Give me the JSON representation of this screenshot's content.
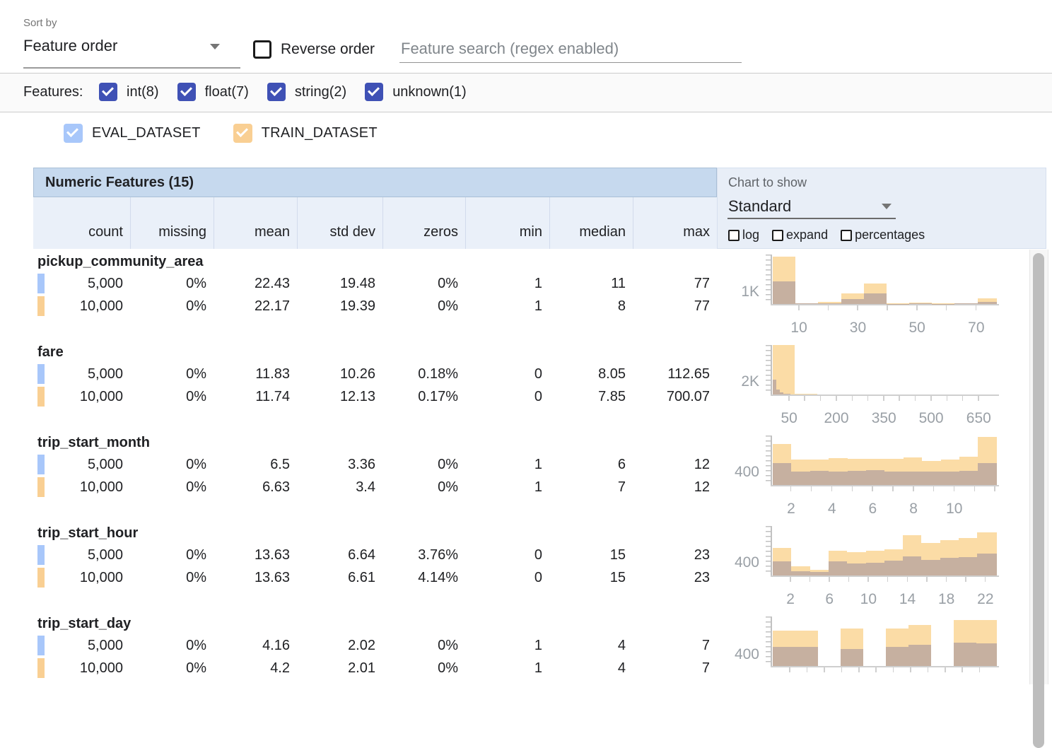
{
  "colors": {
    "eval": "#a8c7fa",
    "train": "#f9cf93",
    "train_bar": "#fbdca6",
    "overlap_bar": "#c6b0a0",
    "indigo": "#3f51b5",
    "header_band": "#c6d9ee",
    "header_row": "#eaf0f9",
    "panel": "#e8eef7"
  },
  "toolbar": {
    "sort_by_label": "Sort by",
    "sort_value": "Feature order",
    "reverse_label": "Reverse order",
    "search_placeholder": "Feature search (regex enabled)"
  },
  "filters": {
    "label": "Features:",
    "types": [
      {
        "label": "int(8)",
        "checked": true
      },
      {
        "label": "float(7)",
        "checked": true
      },
      {
        "label": "string(2)",
        "checked": true
      },
      {
        "label": "unknown(1)",
        "checked": true
      }
    ]
  },
  "datasets": [
    {
      "name": "EVAL_DATASET",
      "checked": true
    },
    {
      "name": "TRAIN_DATASET",
      "checked": true
    }
  ],
  "table": {
    "title": "Numeric Features (15)",
    "columns": [
      "count",
      "missing",
      "mean",
      "std dev",
      "zeros",
      "min",
      "median",
      "max"
    ]
  },
  "chart_controls": {
    "label": "Chart to show",
    "value": "Standard",
    "options": [
      {
        "label": "log",
        "checked": false
      },
      {
        "label": "expand",
        "checked": false
      },
      {
        "label": "percentages",
        "checked": false
      }
    ]
  },
  "features": [
    {
      "name": "pickup_community_area",
      "rows": [
        {
          "dataset": "EVAL_DATASET",
          "values": [
            "5,000",
            "0%",
            "22.43",
            "19.48",
            "0%",
            "1",
            "11",
            "77"
          ]
        },
        {
          "dataset": "TRAIN_DATASET",
          "values": [
            "10,000",
            "0%",
            "22.17",
            "19.39",
            "0%",
            "1",
            "8",
            "77"
          ]
        }
      ]
    },
    {
      "name": "fare",
      "rows": [
        {
          "dataset": "EVAL_DATASET",
          "values": [
            "5,000",
            "0%",
            "11.83",
            "10.26",
            "0.18%",
            "0",
            "8.05",
            "112.65"
          ]
        },
        {
          "dataset": "TRAIN_DATASET",
          "values": [
            "10,000",
            "0%",
            "11.74",
            "12.13",
            "0.17%",
            "0",
            "7.85",
            "700.07"
          ]
        }
      ]
    },
    {
      "name": "trip_start_month",
      "rows": [
        {
          "dataset": "EVAL_DATASET",
          "values": [
            "5,000",
            "0%",
            "6.5",
            "3.36",
            "0%",
            "1",
            "6",
            "12"
          ]
        },
        {
          "dataset": "TRAIN_DATASET",
          "values": [
            "10,000",
            "0%",
            "6.63",
            "3.4",
            "0%",
            "1",
            "7",
            "12"
          ]
        }
      ]
    },
    {
      "name": "trip_start_hour",
      "rows": [
        {
          "dataset": "EVAL_DATASET",
          "values": [
            "5,000",
            "0%",
            "13.63",
            "6.64",
            "3.76%",
            "0",
            "15",
            "23"
          ]
        },
        {
          "dataset": "TRAIN_DATASET",
          "values": [
            "10,000",
            "0%",
            "13.63",
            "6.61",
            "4.14%",
            "0",
            "15",
            "23"
          ]
        }
      ]
    },
    {
      "name": "trip_start_day",
      "rows": [
        {
          "dataset": "EVAL_DATASET",
          "values": [
            "5,000",
            "0%",
            "4.16",
            "2.02",
            "0%",
            "1",
            "4",
            "7"
          ]
        },
        {
          "dataset": "TRAIN_DATASET",
          "values": [
            "10,000",
            "0%",
            "4.2",
            "2.01",
            "0%",
            "1",
            "4",
            "7"
          ]
        }
      ]
    }
  ],
  "chart_data": [
    {
      "feature": "pickup_community_area",
      "type": "histogram",
      "series": [
        "TRAIN_DATASET",
        "EVAL_DATASET"
      ],
      "ylabel": {
        "text": "1K",
        "value": 1000
      },
      "ymax": 3850,
      "ticks": [
        {
          "p": 11.7,
          "t": "10"
        },
        {
          "p": 24.9
        },
        {
          "p": 38.0,
          "t": "30"
        },
        {
          "p": 51.2
        },
        {
          "p": 64.4,
          "t": "50"
        },
        {
          "p": 77.6
        },
        {
          "p": 90.8,
          "t": "70"
        }
      ],
      "bars": [
        {
          "l": 0,
          "w": 10.15,
          "train": 3700,
          "eval": 1770
        },
        {
          "l": 10.15,
          "w": 10.15,
          "train": 60,
          "eval": 30
        },
        {
          "l": 20.3,
          "w": 10.15,
          "train": 160,
          "eval": 60
        },
        {
          "l": 30.45,
          "w": 10.15,
          "train": 810,
          "eval": 390
        },
        {
          "l": 40.6,
          "w": 10.15,
          "train": 1620,
          "eval": 810
        },
        {
          "l": 50.75,
          "w": 10.15,
          "train": 40,
          "eval": 20
        },
        {
          "l": 60.9,
          "w": 10.15,
          "train": 100,
          "eval": 40
        },
        {
          "l": 71.05,
          "w": 10.15,
          "train": 40,
          "eval": 20
        },
        {
          "l": 81.2,
          "w": 10.15,
          "train": 60,
          "eval": 30
        },
        {
          "l": 91.35,
          "w": 8.65,
          "train": 420,
          "eval": 170
        }
      ]
    },
    {
      "feature": "fare",
      "type": "histogram",
      "series": [
        "TRAIN_DATASET",
        "EVAL_DATASET"
      ],
      "ylabel": {
        "text": "2K",
        "value": 2000
      },
      "ymax": 7200,
      "ticks": [
        {
          "p": 7.3,
          "t": "50"
        },
        {
          "p": 14.3
        },
        {
          "p": 21.4
        },
        {
          "p": 28.4,
          "t": "200"
        },
        {
          "p": 35.5
        },
        {
          "p": 42.5
        },
        {
          "p": 49.6,
          "t": "350"
        },
        {
          "p": 56.6
        },
        {
          "p": 63.7
        },
        {
          "p": 70.7,
          "t": "500"
        },
        {
          "p": 77.8
        },
        {
          "p": 84.8
        },
        {
          "p": 91.9,
          "t": "650"
        }
      ],
      "bars": [
        {
          "l": 0,
          "w": 9.9,
          "train": 7200,
          "eval": 0
        },
        {
          "l": 9.9,
          "w": 9.9,
          "train": 110,
          "eval": 0
        },
        {
          "l": 0,
          "w": 1.6,
          "train": 0,
          "eval": 2160
        },
        {
          "l": 1.6,
          "w": 1.6,
          "train": 0,
          "eval": 720
        },
        {
          "l": 3.2,
          "w": 1.6,
          "train": 0,
          "eval": 290
        },
        {
          "l": 4.8,
          "w": 1.6,
          "train": 0,
          "eval": 140
        },
        {
          "l": 6.4,
          "w": 1.6,
          "train": 0,
          "eval": 70
        }
      ]
    },
    {
      "feature": "trip_start_month",
      "type": "histogram",
      "series": [
        "TRAIN_DATASET",
        "EVAL_DATASET"
      ],
      "ylabel": {
        "text": "400",
        "value": 400
      },
      "ymax": 1445,
      "ticks": [
        {
          "p": 8.2,
          "t": "2"
        },
        {
          "p": 17.3
        },
        {
          "p": 26.4,
          "t": "4"
        },
        {
          "p": 35.5
        },
        {
          "p": 44.6,
          "t": "6"
        },
        {
          "p": 53.7
        },
        {
          "p": 62.8,
          "t": "8"
        },
        {
          "p": 71.9
        },
        {
          "p": 81.0,
          "t": "10"
        },
        {
          "p": 90.1
        },
        {
          "p": 99.2
        }
      ],
      "bars": [
        {
          "l": 0,
          "w": 8.33,
          "train": 1200,
          "eval": 640
        },
        {
          "l": 8.33,
          "w": 8.33,
          "train": 740,
          "eval": 400
        },
        {
          "l": 16.66,
          "w": 8.33,
          "train": 740,
          "eval": 405
        },
        {
          "l": 24.99,
          "w": 8.33,
          "train": 780,
          "eval": 390
        },
        {
          "l": 33.32,
          "w": 8.33,
          "train": 760,
          "eval": 420
        },
        {
          "l": 41.65,
          "w": 8.33,
          "train": 760,
          "eval": 430
        },
        {
          "l": 49.98,
          "w": 8.33,
          "train": 760,
          "eval": 390
        },
        {
          "l": 58.31,
          "w": 8.33,
          "train": 800,
          "eval": 400
        },
        {
          "l": 66.64,
          "w": 8.33,
          "train": 700,
          "eval": 400
        },
        {
          "l": 74.97,
          "w": 8.33,
          "train": 740,
          "eval": 400
        },
        {
          "l": 83.3,
          "w": 8.33,
          "train": 820,
          "eval": 420
        },
        {
          "l": 91.63,
          "w": 8.37,
          "train": 1400,
          "eval": 640
        }
      ]
    },
    {
      "feature": "trip_start_hour",
      "type": "histogram",
      "series": [
        "TRAIN_DATASET",
        "EVAL_DATASET"
      ],
      "ylabel": {
        "text": "400",
        "value": 400
      },
      "ymax": 1500,
      "ticks": [
        {
          "p": 7.9,
          "t": "2"
        },
        {
          "p": 16.6
        },
        {
          "p": 25.3,
          "t": "6"
        },
        {
          "p": 34.0
        },
        {
          "p": 42.7,
          "t": "10"
        },
        {
          "p": 51.4
        },
        {
          "p": 60.1,
          "t": "14"
        },
        {
          "p": 68.8
        },
        {
          "p": 77.5,
          "t": "18"
        },
        {
          "p": 86.2
        },
        {
          "p": 94.9,
          "t": "22"
        }
      ],
      "bars": [
        {
          "l": 0,
          "w": 8.3,
          "train": 840,
          "eval": 420
        },
        {
          "l": 8.3,
          "w": 8.3,
          "train": 280,
          "eval": 120
        },
        {
          "l": 16.6,
          "w": 8.3,
          "train": 180,
          "eval": 100
        },
        {
          "l": 24.9,
          "w": 8.3,
          "train": 760,
          "eval": 420
        },
        {
          "l": 33.2,
          "w": 8.3,
          "train": 700,
          "eval": 360
        },
        {
          "l": 41.5,
          "w": 8.3,
          "train": 740,
          "eval": 380
        },
        {
          "l": 49.8,
          "w": 8.3,
          "train": 800,
          "eval": 440
        },
        {
          "l": 58.1,
          "w": 8.3,
          "train": 1220,
          "eval": 580
        },
        {
          "l": 66.4,
          "w": 8.3,
          "train": 980,
          "eval": 480
        },
        {
          "l": 74.7,
          "w": 8.3,
          "train": 1080,
          "eval": 540
        },
        {
          "l": 83.0,
          "w": 8.3,
          "train": 1140,
          "eval": 560
        },
        {
          "l": 91.3,
          "w": 8.7,
          "train": 1300,
          "eval": 660
        }
      ]
    },
    {
      "feature": "trip_start_day",
      "type": "histogram",
      "series": [
        "TRAIN_DATASET",
        "EVAL_DATASET"
      ],
      "ylabel": {
        "text": "400",
        "value": 400
      },
      "ymax": 1695,
      "ticks": [
        {
          "p": 7.7
        },
        {
          "p": 15.4
        },
        {
          "p": 23.1
        },
        {
          "p": 30.8
        },
        {
          "p": 38.5
        },
        {
          "p": 46.2
        },
        {
          "p": 53.9
        },
        {
          "p": 61.6
        },
        {
          "p": 69.3
        },
        {
          "p": 77.0
        },
        {
          "p": 84.7
        },
        {
          "p": 92.4
        }
      ],
      "bars": [
        {
          "l": 0,
          "w": 10.1,
          "train": 1220,
          "eval": 660
        },
        {
          "l": 10.1,
          "w": 10.1,
          "train": 1220,
          "eval": 660
        },
        {
          "l": 20.2,
          "w": 10.1,
          "train": 0,
          "eval": 0
        },
        {
          "l": 30.3,
          "w": 10.1,
          "train": 1290,
          "eval": 590
        },
        {
          "l": 40.4,
          "w": 10.1,
          "train": 0,
          "eval": 0
        },
        {
          "l": 50.5,
          "w": 10.1,
          "train": 1290,
          "eval": 660
        },
        {
          "l": 60.6,
          "w": 10.1,
          "train": 1410,
          "eval": 730
        },
        {
          "l": 70.7,
          "w": 10.1,
          "train": 0,
          "eval": 0
        },
        {
          "l": 80.8,
          "w": 10.1,
          "train": 1575,
          "eval": 800
        },
        {
          "l": 90.9,
          "w": 9.1,
          "train": 1575,
          "eval": 780
        }
      ]
    }
  ]
}
